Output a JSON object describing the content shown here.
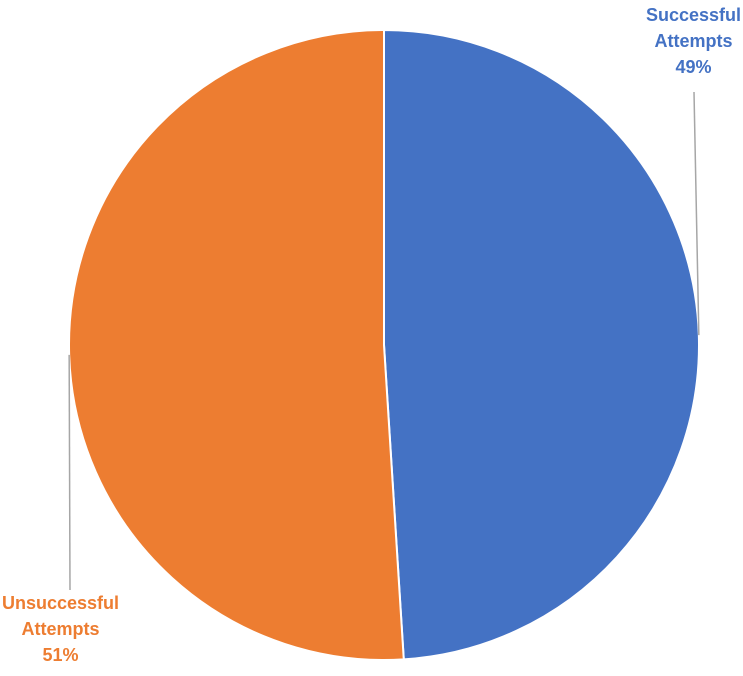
{
  "chart_data": {
    "type": "pie",
    "title": "",
    "categories": [
      "Successful Attempts",
      "Unsuccessful Attempts"
    ],
    "values": [
      49,
      51
    ],
    "unit": "%",
    "colors": [
      "#4472C4",
      "#ED7D31"
    ],
    "start": "12 o'clock",
    "direction": "clockwise",
    "legend": "none",
    "slice_border_color": "#ffffff",
    "leader_line_color": "#A6A6A6",
    "data_labels": [
      {
        "line1": "Successful",
        "line2": "Attempts",
        "line3": "49%",
        "color": "#4472C4"
      },
      {
        "line1": "Unsuccessful",
        "line2": "Attempts",
        "line3": "51%",
        "color": "#ED7D31"
      }
    ]
  }
}
